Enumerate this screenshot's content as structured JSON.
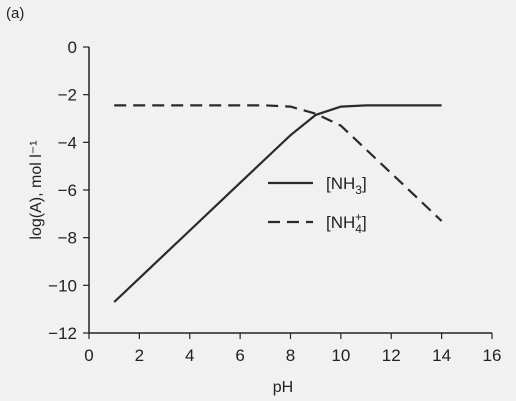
{
  "panel_label": "(a)",
  "chart_data": {
    "type": "line",
    "xlabel": "pH",
    "ylabel": "log(A), mol l⁻¹",
    "xlim": [
      0,
      16
    ],
    "ylim": [
      -12,
      0
    ],
    "x_ticks": [
      0,
      2,
      4,
      6,
      8,
      10,
      12,
      14,
      16
    ],
    "y_ticks": [
      0,
      -2,
      -4,
      -6,
      -8,
      -10,
      -12
    ],
    "x_tick_labels": [
      "0",
      "2",
      "4",
      "6",
      "8",
      "10",
      "12",
      "14",
      "16"
    ],
    "y_tick_labels": [
      "0",
      "−2",
      "−4",
      "−6",
      "−8",
      "−10",
      "−12"
    ],
    "legend_position": "center-right",
    "series": [
      {
        "name": "[NH3]",
        "style": "solid",
        "color": "#2a2a2a",
        "x": [
          1,
          2,
          3,
          4,
          5,
          6,
          7,
          8,
          9,
          10,
          11,
          12,
          13,
          14
        ],
        "y": [
          -10.7,
          -9.7,
          -8.7,
          -7.7,
          -6.7,
          -5.7,
          -4.7,
          -3.7,
          -2.85,
          -2.5,
          -2.45,
          -2.45,
          -2.45,
          -2.45
        ]
      },
      {
        "name": "[NH4+]",
        "style": "dashed",
        "color": "#2a2a2a",
        "x": [
          1,
          2,
          3,
          4,
          5,
          6,
          7,
          8,
          9,
          10,
          11,
          12,
          13,
          14
        ],
        "y": [
          -2.45,
          -2.45,
          -2.45,
          -2.45,
          -2.45,
          -2.45,
          -2.45,
          -2.5,
          -2.8,
          -3.3,
          -4.3,
          -5.3,
          -6.3,
          -7.3
        ]
      }
    ]
  }
}
